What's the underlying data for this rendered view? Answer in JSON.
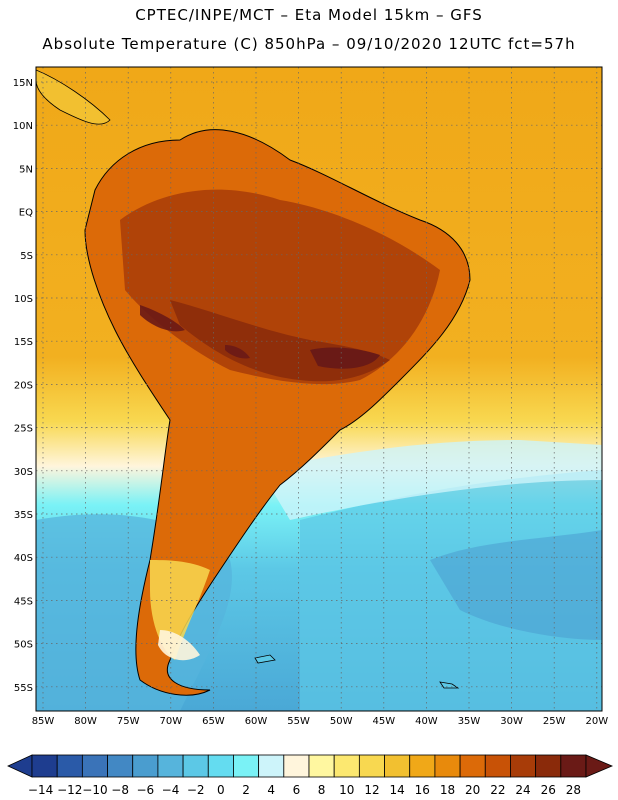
{
  "title": {
    "line1": "CPTEC/INPE/MCT –  Eta Model 15km – GFS",
    "line2": "Absolute Temperature (C) 850hPa – 09/10/2020 12UTC fct=57h"
  },
  "lat_labels": [
    "15N",
    "10N",
    "5N",
    "EQ",
    "5S",
    "10S",
    "15S",
    "20S",
    "25S",
    "30S",
    "35S",
    "40S",
    "45S",
    "50S",
    "55S"
  ],
  "lon_labels": [
    "85W",
    "80W",
    "75W",
    "70W",
    "65W",
    "60W",
    "55W",
    "50W",
    "45W",
    "40W",
    "35W",
    "30W",
    "25W",
    "20W"
  ],
  "colorbar": {
    "labels": [
      "-14",
      "-12",
      "-10",
      "-8",
      "-6",
      "-4",
      "-2",
      "0",
      "2",
      "4",
      "6",
      "8",
      "10",
      "12",
      "14",
      "16",
      "18",
      "20",
      "22",
      "24",
      "26",
      "28"
    ],
    "colors": [
      "#1e3d8f",
      "#2a5aa8",
      "#3a73b8",
      "#4288c4",
      "#4a9dcf",
      "#56b4dc",
      "#5cc8e6",
      "#64dcf0",
      "#7af2f6",
      "#cdf4fa",
      "#fff5dc",
      "#fff7a0",
      "#fce870",
      "#f8d850",
      "#f2c030",
      "#f0a818",
      "#e88a0c",
      "#dc6a08",
      "#c85206",
      "#a83c08",
      "#8a2a0a",
      "#6a1a16"
    ],
    "min_color": "#1e3d8f",
    "max_color": "#6a1a16"
  }
}
